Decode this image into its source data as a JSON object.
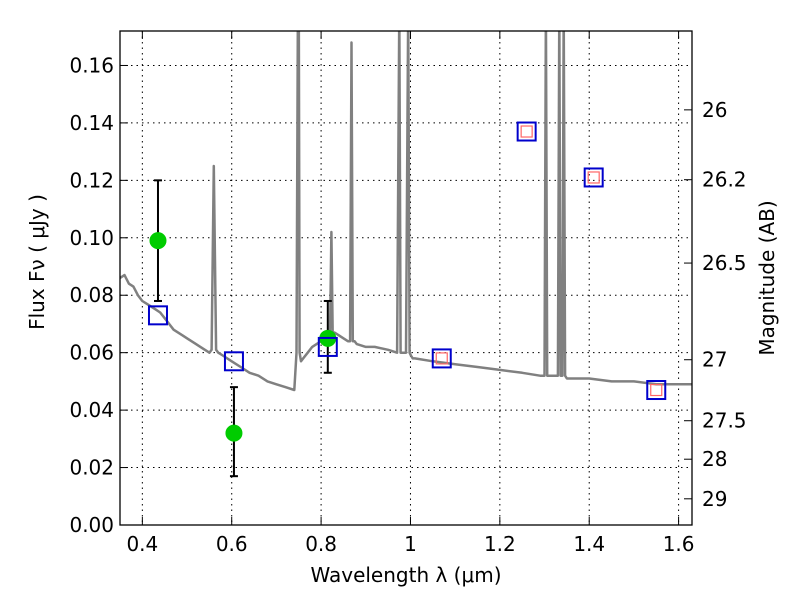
{
  "chart_data": {
    "type": "scatter",
    "xlabel": "Wavelength  λ (μm)",
    "ylabel": "Flux  Fν  ( μJy )",
    "y2label": "Magnitude (AB)",
    "xlim": [
      0.35,
      1.63
    ],
    "ylim": [
      0.0,
      0.172
    ],
    "grid": true,
    "x_ticks": [
      0.4,
      0.6,
      0.8,
      1.0,
      1.2,
      1.4,
      1.6
    ],
    "x_tick_labels": [
      "0.4",
      "0.6",
      "0.8",
      "1",
      "1.2",
      "1.4",
      "1.6"
    ],
    "y_ticks": [
      0.0,
      0.02,
      0.04,
      0.06,
      0.08,
      0.1,
      0.12,
      0.14,
      0.16
    ],
    "y_tick_labels": [
      "0.00",
      "0.02",
      "0.04",
      "0.06",
      "0.08",
      "0.10",
      "0.12",
      "0.14",
      "0.16"
    ],
    "mag_ticks": [
      26,
      26.2,
      26.5,
      27,
      27.5,
      28,
      29
    ],
    "mag_tick_labels": [
      "26",
      "26.2",
      "26.5",
      "27",
      "27.5",
      "28",
      "29"
    ],
    "series": [
      {
        "kind": "line",
        "color": "#808080",
        "x": [
          0.35,
          0.36,
          0.37,
          0.38,
          0.39,
          0.4,
          0.41,
          0.42,
          0.43,
          0.44,
          0.45,
          0.46,
          0.47,
          0.48,
          0.49,
          0.5,
          0.51,
          0.52,
          0.53,
          0.54,
          0.55,
          0.555,
          0.56,
          0.565,
          0.57,
          0.58,
          0.6,
          0.62,
          0.64,
          0.66,
          0.68,
          0.7,
          0.72,
          0.74,
          0.745,
          0.748,
          0.75,
          0.752,
          0.755,
          0.76,
          0.77,
          0.78,
          0.79,
          0.8,
          0.81,
          0.82,
          0.823,
          0.826,
          0.83,
          0.84,
          0.85,
          0.86,
          0.865,
          0.868,
          0.871,
          0.875,
          0.88,
          0.9,
          0.92,
          0.95,
          0.97,
          0.975,
          0.978,
          0.981,
          0.985,
          0.99,
          0.995,
          0.998,
          1.001,
          1.005,
          1.01,
          1.05,
          1.1,
          1.15,
          1.2,
          1.25,
          1.29,
          1.3,
          1.303,
          1.306,
          1.31,
          1.32,
          1.33,
          1.333,
          1.336,
          1.34,
          1.343,
          1.346,
          1.35,
          1.4,
          1.45,
          1.5,
          1.55,
          1.6,
          1.63
        ],
        "y": [
          0.086,
          0.087,
          0.084,
          0.083,
          0.08,
          0.078,
          0.077,
          0.076,
          0.075,
          0.074,
          0.072,
          0.07,
          0.068,
          0.067,
          0.066,
          0.065,
          0.064,
          0.063,
          0.062,
          0.061,
          0.06,
          0.061,
          0.125,
          0.061,
          0.06,
          0.059,
          0.057,
          0.055,
          0.053,
          0.052,
          0.05,
          0.049,
          0.048,
          0.047,
          0.06,
          0.18,
          0.18,
          0.06,
          0.057,
          0.058,
          0.06,
          0.062,
          0.063,
          0.064,
          0.065,
          0.066,
          0.102,
          0.066,
          0.067,
          0.066,
          0.065,
          0.064,
          0.064,
          0.168,
          0.064,
          0.064,
          0.063,
          0.062,
          0.062,
          0.061,
          0.06,
          0.18,
          0.06,
          0.06,
          0.06,
          0.06,
          0.18,
          0.06,
          0.059,
          0.058,
          0.058,
          0.057,
          0.056,
          0.055,
          0.054,
          0.053,
          0.052,
          0.052,
          0.18,
          0.052,
          0.052,
          0.052,
          0.052,
          0.18,
          0.052,
          0.052,
          0.18,
          0.052,
          0.051,
          0.051,
          0.05,
          0.05,
          0.049,
          0.049,
          0.049
        ]
      },
      {
        "kind": "errorbar",
        "name": "",
        "color": "#00cc00",
        "x": [
          0.435,
          0.605,
          0.815
        ],
        "y": [
          0.099,
          0.032,
          0.065
        ],
        "yerr_low": [
          0.021,
          0.015,
          0.012
        ],
        "yerr_high": [
          0.021,
          0.016,
          0.013
        ]
      },
      {
        "kind": "square",
        "color": "#0000cc",
        "x": [
          0.435,
          0.605,
          0.815,
          1.07,
          1.26,
          1.41,
          1.55
        ],
        "y": [
          0.073,
          0.057,
          0.062,
          0.058,
          0.137,
          0.121,
          0.047
        ]
      },
      {
        "kind": "small-square",
        "color": "#ff6666",
        "x": [
          1.07,
          1.26,
          1.41,
          1.55
        ],
        "y": [
          0.058,
          0.137,
          0.121,
          0.047
        ]
      }
    ]
  }
}
